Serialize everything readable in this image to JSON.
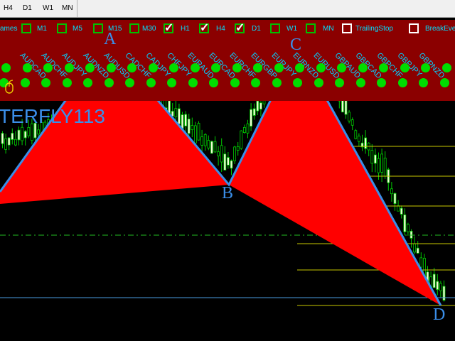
{
  "toolbar": {
    "timeframes": [
      "H4",
      "D1",
      "W1",
      "MN"
    ]
  },
  "panel": {
    "checkboxes": [
      {
        "label": "ames",
        "checked": null
      },
      {
        "label": "M1",
        "checked": false
      },
      {
        "label": "M5",
        "checked": false
      },
      {
        "label": "M15",
        "checked": false
      },
      {
        "label": "M30",
        "checked": false
      },
      {
        "label": "H1",
        "checked": true
      },
      {
        "label": "H4",
        "checked": true
      },
      {
        "label": "D1",
        "checked": true
      },
      {
        "label": "W1",
        "checked": false
      },
      {
        "label": "MN",
        "checked": false
      },
      {
        "label": "TrailingStop",
        "checked": false
      },
      {
        "label": "BreakEve",
        "checked": false
      }
    ],
    "symbols": [
      "AUDCAD",
      "AUDCHF",
      "AUDJPY",
      "AUDNZD",
      "AUDUSD",
      "CADCHF",
      "CADJPY",
      "CHFJPY",
      "EURAUD",
      "EURCAD",
      "EURCHF",
      "EURGBP",
      "EURJPY",
      "EURNZD",
      "EURUSD",
      "GBPAUD",
      "GBPCAD",
      "GBPCHF",
      "GBPJPY",
      "GBPNZD"
    ],
    "status_color": "#00dd00",
    "background_color": "#8b0000"
  },
  "pattern": {
    "name": "TERFLY113",
    "points": {
      "A": "A",
      "B": "B",
      "C": "C",
      "D": "D"
    },
    "fill_color": "#ff0000",
    "line_color": "#3b8ee8"
  },
  "icons": {
    "mouse": "mouse-icon"
  }
}
